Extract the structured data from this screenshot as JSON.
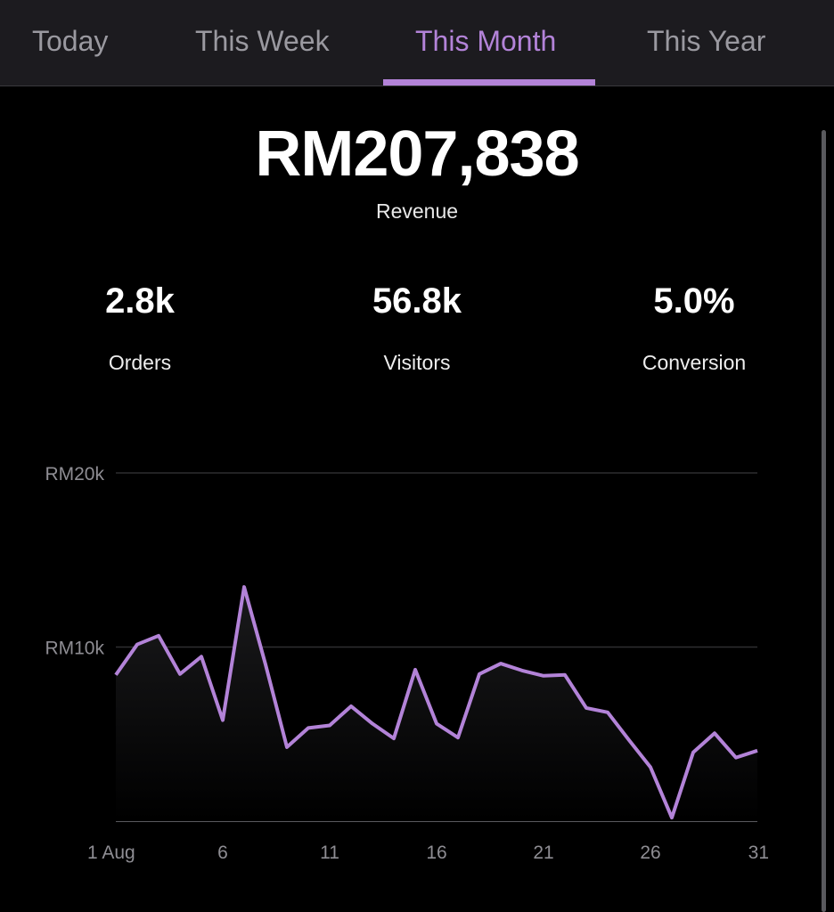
{
  "tabs": [
    {
      "label": "Today"
    },
    {
      "label": "This Week"
    },
    {
      "label": "This Month",
      "active": true
    },
    {
      "label": "This Year"
    }
  ],
  "summary": {
    "revenue_value": "RM207,838",
    "revenue_label": "Revenue"
  },
  "stats": [
    {
      "value": "2.8k",
      "label": "Orders"
    },
    {
      "value": "56.8k",
      "label": "Visitors"
    },
    {
      "value": "5.0%",
      "label": "Conversion"
    }
  ],
  "colors": {
    "accent": "#b383d8",
    "background": "#000000",
    "tab_bar": "#1c1b1f"
  },
  "chart_data": {
    "type": "line",
    "ylim": [
      0,
      20000
    ],
    "y_ticks": [
      {
        "value": 20000,
        "label": "RM20k"
      },
      {
        "value": 10000,
        "label": "RM10k"
      }
    ],
    "x_ticks": [
      {
        "day": 1,
        "label": "1 Aug"
      },
      {
        "day": 6,
        "label": "6"
      },
      {
        "day": 11,
        "label": "11"
      },
      {
        "day": 16,
        "label": "16"
      },
      {
        "day": 21,
        "label": "21"
      },
      {
        "day": 26,
        "label": "26"
      },
      {
        "day": 31,
        "label": "31"
      }
    ],
    "grid": true,
    "x": [
      1,
      2,
      3,
      4,
      5,
      6,
      7,
      8,
      9,
      10,
      11,
      12,
      13,
      14,
      15,
      16,
      17,
      18,
      19,
      20,
      21,
      22,
      23,
      24,
      25,
      26,
      27,
      28,
      29,
      30,
      31
    ],
    "values": [
      8400,
      10150,
      10650,
      8450,
      9450,
      5800,
      13450,
      9000,
      4250,
      5350,
      5500,
      6600,
      5600,
      4750,
      8700,
      5600,
      4800,
      8450,
      9050,
      8650,
      8350,
      8400,
      6500,
      6250,
      4650,
      3100,
      200,
      3950,
      5050,
      3650,
      4050
    ]
  }
}
